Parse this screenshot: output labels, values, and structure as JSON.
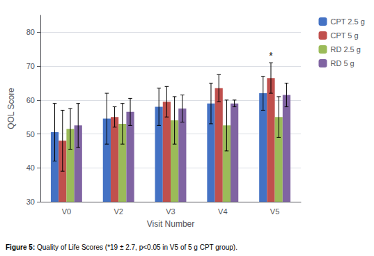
{
  "chart_data": {
    "type": "bar",
    "categories": [
      "V0",
      "V2",
      "V3",
      "V4",
      "V5"
    ],
    "series": [
      {
        "name": "CPT 2.5 g",
        "color": "#4472C4",
        "values": [
          50.5,
          54.5,
          58.0,
          59.0,
          62.0
        ],
        "errors": [
          8.5,
          7.5,
          5.5,
          6.0,
          5.0
        ]
      },
      {
        "name": "CPT 5 g",
        "color": "#C0504D",
        "values": [
          48.0,
          55.0,
          59.5,
          63.5,
          66.5
        ],
        "errors": [
          9.0,
          3.0,
          4.5,
          4.0,
          4.5
        ]
      },
      {
        "name": "RD 2.5 g",
        "color": "#9BBB59",
        "values": [
          51.5,
          53.0,
          54.0,
          52.5,
          55.0
        ],
        "errors": [
          6.0,
          6.0,
          7.0,
          7.5,
          6.0
        ]
      },
      {
        "name": "RD 5 g",
        "color": "#8064A2",
        "values": [
          52.5,
          56.5,
          57.5,
          59.0,
          61.5
        ],
        "errors": [
          6.5,
          4.0,
          4.0,
          1.0,
          3.5
        ]
      }
    ],
    "xlabel": "Visit Number",
    "ylabel": "QOL Score",
    "ylim": [
      30,
      85
    ],
    "yticks": [
      30,
      40,
      50,
      60,
      70,
      80
    ],
    "grid": true,
    "legend": "right",
    "annotations": [
      {
        "text": "*",
        "category": "V5",
        "series": "CPT 5 g"
      }
    ],
    "caption_label": "Figure 5:",
    "caption": "Quality of Life Scores (*19 ± 2.7, p<0.05 in V5 of 5 g CPT group)."
  }
}
